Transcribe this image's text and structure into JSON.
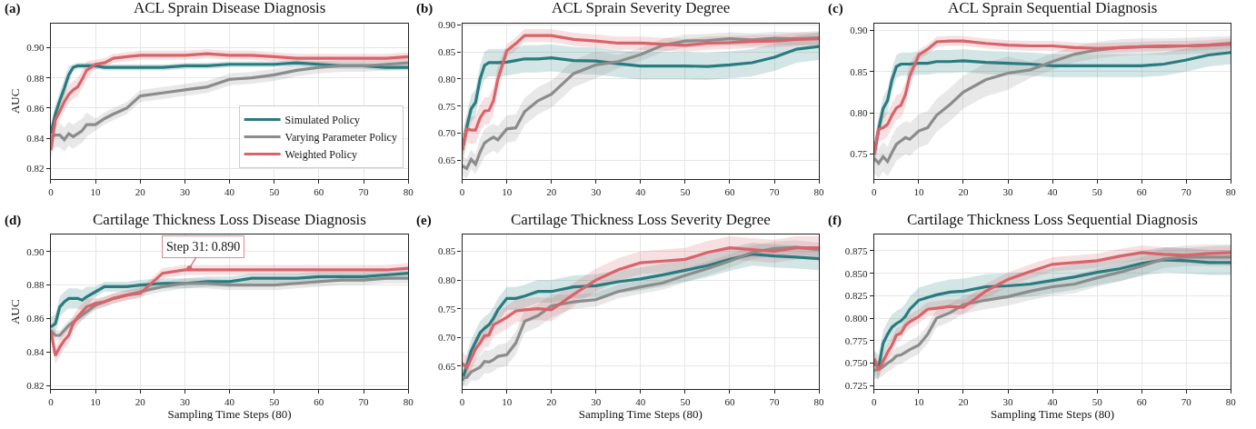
{
  "chart_data": [
    {
      "type": "line",
      "title": "ACL Sprain Disease Diagnosis",
      "ylabel": "AUC",
      "annotations": [
        "(a)"
      ],
      "x": [
        0,
        1,
        2,
        3,
        4,
        5,
        6,
        7,
        8,
        10,
        12,
        14,
        17,
        20,
        25,
        30,
        35,
        40,
        45,
        50,
        55,
        60,
        65,
        70,
        75,
        80
      ],
      "xlim": [
        0,
        80
      ],
      "xticks": [
        0,
        10,
        20,
        30,
        40,
        50,
        60,
        70,
        80
      ],
      "ylim": [
        0.813,
        0.916
      ],
      "yticks": [
        {
          "value": 0.82,
          "label": "0.82"
        },
        {
          "value": 0.84,
          "label": "0.84"
        },
        {
          "value": 0.86,
          "label": "0.86"
        },
        {
          "value": 0.88,
          "label": "0.88"
        },
        {
          "value": 0.9,
          "label": "0.90"
        }
      ],
      "grid": true,
      "legend": "bottom right",
      "series": [
        {
          "name": "Simulated Policy",
          "color": "#2a7b7f",
          "values": [
            0.843,
            0.856,
            0.865,
            0.873,
            0.882,
            0.887,
            0.888,
            0.888,
            0.888,
            0.888,
            0.887,
            0.887,
            0.887,
            0.887,
            0.887,
            0.888,
            0.888,
            0.889,
            0.889,
            0.889,
            0.89,
            0.889,
            0.888,
            0.888,
            0.887,
            0.887
          ],
          "lower": [
            0.837,
            0.85,
            0.859,
            0.867,
            0.876,
            0.885,
            0.886,
            0.886,
            0.886,
            0.886,
            0.885,
            0.885,
            0.885,
            0.885,
            0.885,
            0.886,
            0.886,
            0.887,
            0.887,
            0.887,
            0.888,
            0.887,
            0.886,
            0.886,
            0.885,
            0.885
          ],
          "upper": [
            0.849,
            0.862,
            0.871,
            0.879,
            0.888,
            0.889,
            0.89,
            0.89,
            0.89,
            0.89,
            0.889,
            0.889,
            0.889,
            0.889,
            0.889,
            0.89,
            0.89,
            0.891,
            0.891,
            0.891,
            0.892,
            0.891,
            0.89,
            0.89,
            0.889,
            0.889
          ]
        },
        {
          "name": "Varying Parameter Policy",
          "color": "#8c8c8c",
          "values": [
            0.841,
            0.842,
            0.842,
            0.839,
            0.843,
            0.841,
            0.843,
            0.845,
            0.849,
            0.849,
            0.853,
            0.856,
            0.86,
            0.868,
            0.87,
            0.872,
            0.874,
            0.879,
            0.88,
            0.882,
            0.885,
            0.887,
            0.888,
            0.888,
            0.889,
            0.89
          ],
          "lower": [
            0.833,
            0.834,
            0.834,
            0.831,
            0.835,
            0.833,
            0.835,
            0.837,
            0.841,
            0.845,
            0.849,
            0.852,
            0.856,
            0.864,
            0.866,
            0.868,
            0.87,
            0.875,
            0.876,
            0.878,
            0.881,
            0.883,
            0.884,
            0.884,
            0.885,
            0.886
          ],
          "upper": [
            0.849,
            0.85,
            0.85,
            0.847,
            0.851,
            0.849,
            0.851,
            0.853,
            0.857,
            0.853,
            0.857,
            0.86,
            0.864,
            0.872,
            0.874,
            0.876,
            0.878,
            0.883,
            0.884,
            0.886,
            0.889,
            0.891,
            0.892,
            0.892,
            0.893,
            0.894
          ]
        },
        {
          "name": "Weighted Policy",
          "color": "#d9636a",
          "values": [
            0.832,
            0.852,
            0.858,
            0.864,
            0.869,
            0.872,
            0.874,
            0.879,
            0.885,
            0.889,
            0.89,
            0.893,
            0.894,
            0.895,
            0.895,
            0.895,
            0.896,
            0.895,
            0.895,
            0.894,
            0.893,
            0.893,
            0.893,
            0.893,
            0.893,
            0.894
          ],
          "lower": [
            0.826,
            0.846,
            0.852,
            0.858,
            0.863,
            0.866,
            0.868,
            0.873,
            0.879,
            0.886,
            0.887,
            0.89,
            0.891,
            0.892,
            0.892,
            0.892,
            0.893,
            0.892,
            0.892,
            0.891,
            0.89,
            0.89,
            0.89,
            0.89,
            0.89,
            0.891
          ],
          "upper": [
            0.838,
            0.858,
            0.864,
            0.87,
            0.875,
            0.878,
            0.88,
            0.885,
            0.891,
            0.892,
            0.893,
            0.896,
            0.897,
            0.898,
            0.898,
            0.898,
            0.899,
            0.898,
            0.898,
            0.897,
            0.896,
            0.896,
            0.896,
            0.896,
            0.896,
            0.897
          ]
        }
      ]
    },
    {
      "type": "line",
      "title": "ACL Sprain Severity Degree",
      "annotations": [
        "(b)"
      ],
      "x": [
        0,
        1,
        2,
        3,
        4,
        5,
        6,
        7,
        8,
        10,
        12,
        14,
        17,
        20,
        25,
        30,
        35,
        40,
        45,
        50,
        55,
        60,
        65,
        70,
        75,
        80
      ],
      "xlim": [
        0,
        80
      ],
      "xticks": [
        0,
        10,
        20,
        30,
        40,
        50,
        60,
        70,
        80
      ],
      "ylim": [
        0.616,
        0.902
      ],
      "yticks": [
        {
          "value": 0.65,
          "label": "0.65"
        },
        {
          "value": 0.7,
          "label": "0.70"
        },
        {
          "value": 0.75,
          "label": "0.75"
        },
        {
          "value": 0.8,
          "label": "0.80"
        },
        {
          "value": 0.85,
          "label": "0.85"
        },
        {
          "value": 0.9,
          "label": "0.90"
        }
      ],
      "grid": true,
      "series": [
        {
          "color": "#2a7b7f",
          "values": [
            0.67,
            0.71,
            0.745,
            0.757,
            0.8,
            0.825,
            0.83,
            0.83,
            0.83,
            0.831,
            0.834,
            0.837,
            0.837,
            0.839,
            0.834,
            0.833,
            0.828,
            0.824,
            0.824,
            0.824,
            0.823,
            0.826,
            0.83,
            0.84,
            0.855,
            0.86
          ],
          "lower": [
            0.645,
            0.685,
            0.72,
            0.732,
            0.775,
            0.8,
            0.805,
            0.805,
            0.805,
            0.806,
            0.809,
            0.812,
            0.812,
            0.814,
            0.809,
            0.808,
            0.803,
            0.799,
            0.799,
            0.799,
            0.798,
            0.801,
            0.805,
            0.815,
            0.83,
            0.835
          ],
          "upper": [
            0.695,
            0.735,
            0.77,
            0.782,
            0.825,
            0.85,
            0.855,
            0.855,
            0.855,
            0.856,
            0.859,
            0.862,
            0.862,
            0.864,
            0.859,
            0.858,
            0.853,
            0.849,
            0.849,
            0.849,
            0.848,
            0.851,
            0.855,
            0.865,
            0.88,
            0.885
          ]
        },
        {
          "color": "#8c8c8c",
          "values": [
            0.64,
            0.635,
            0.652,
            0.643,
            0.665,
            0.682,
            0.688,
            0.693,
            0.688,
            0.708,
            0.71,
            0.74,
            0.76,
            0.772,
            0.81,
            0.826,
            0.832,
            0.845,
            0.862,
            0.87,
            0.871,
            0.874,
            0.872,
            0.875,
            0.874,
            0.876
          ],
          "lower": [
            0.622,
            0.617,
            0.634,
            0.625,
            0.64,
            0.657,
            0.663,
            0.668,
            0.663,
            0.683,
            0.685,
            0.715,
            0.735,
            0.747,
            0.785,
            0.801,
            0.82,
            0.833,
            0.85,
            0.858,
            0.859,
            0.862,
            0.86,
            0.863,
            0.862,
            0.864
          ],
          "upper": [
            0.658,
            0.653,
            0.67,
            0.661,
            0.69,
            0.707,
            0.713,
            0.718,
            0.713,
            0.733,
            0.735,
            0.765,
            0.785,
            0.797,
            0.835,
            0.851,
            0.844,
            0.857,
            0.874,
            0.882,
            0.883,
            0.886,
            0.884,
            0.887,
            0.886,
            0.888
          ]
        },
        {
          "color": "#d9636a",
          "values": [
            0.668,
            0.708,
            0.706,
            0.706,
            0.728,
            0.741,
            0.742,
            0.76,
            0.8,
            0.852,
            0.865,
            0.88,
            0.88,
            0.88,
            0.873,
            0.87,
            0.866,
            0.866,
            0.864,
            0.862,
            0.866,
            0.867,
            0.869,
            0.87,
            0.873,
            0.874
          ],
          "lower": [
            0.643,
            0.683,
            0.681,
            0.681,
            0.703,
            0.716,
            0.717,
            0.735,
            0.775,
            0.84,
            0.853,
            0.868,
            0.868,
            0.868,
            0.861,
            0.858,
            0.854,
            0.854,
            0.852,
            0.85,
            0.854,
            0.855,
            0.857,
            0.858,
            0.861,
            0.862
          ],
          "upper": [
            0.693,
            0.733,
            0.731,
            0.731,
            0.753,
            0.766,
            0.767,
            0.785,
            0.825,
            0.864,
            0.877,
            0.892,
            0.892,
            0.892,
            0.885,
            0.882,
            0.878,
            0.878,
            0.876,
            0.874,
            0.878,
            0.879,
            0.881,
            0.882,
            0.885,
            0.886
          ]
        }
      ]
    },
    {
      "type": "line",
      "title": "ACL Sprain Sequential Diagnosis",
      "annotations": [
        "(c)"
      ],
      "x": [
        0,
        1,
        2,
        3,
        4,
        5,
        6,
        7,
        8,
        10,
        12,
        14,
        17,
        20,
        25,
        30,
        35,
        40,
        45,
        50,
        55,
        60,
        65,
        70,
        75,
        80
      ],
      "xlim": [
        0,
        80
      ],
      "xticks": [
        0,
        10,
        20,
        30,
        40,
        50,
        60,
        70,
        80
      ],
      "ylim": [
        0.72,
        0.908
      ],
      "yticks": [
        {
          "value": 0.75,
          "label": "0.75"
        },
        {
          "value": 0.8,
          "label": "0.80"
        },
        {
          "value": 0.85,
          "label": "0.85"
        },
        {
          "value": 0.9,
          "label": "0.90"
        }
      ],
      "grid": true,
      "series": [
        {
          "color": "#2a7b7f",
          "values": [
            0.75,
            0.78,
            0.805,
            0.815,
            0.84,
            0.856,
            0.859,
            0.859,
            0.859,
            0.86,
            0.86,
            0.862,
            0.862,
            0.863,
            0.861,
            0.86,
            0.859,
            0.857,
            0.857,
            0.857,
            0.857,
            0.857,
            0.859,
            0.864,
            0.87,
            0.873
          ],
          "lower": [
            0.736,
            0.766,
            0.791,
            0.801,
            0.826,
            0.842,
            0.845,
            0.845,
            0.845,
            0.846,
            0.846,
            0.848,
            0.848,
            0.849,
            0.847,
            0.846,
            0.845,
            0.843,
            0.843,
            0.843,
            0.843,
            0.843,
            0.845,
            0.85,
            0.856,
            0.859
          ],
          "upper": [
            0.764,
            0.794,
            0.819,
            0.829,
            0.854,
            0.87,
            0.873,
            0.873,
            0.873,
            0.874,
            0.874,
            0.876,
            0.876,
            0.877,
            0.875,
            0.874,
            0.873,
            0.871,
            0.871,
            0.871,
            0.871,
            0.871,
            0.873,
            0.878,
            0.884,
            0.887
          ]
        },
        {
          "color": "#8c8c8c",
          "values": [
            0.745,
            0.739,
            0.747,
            0.741,
            0.752,
            0.762,
            0.766,
            0.77,
            0.768,
            0.778,
            0.782,
            0.797,
            0.81,
            0.825,
            0.84,
            0.848,
            0.852,
            0.862,
            0.871,
            0.876,
            0.879,
            0.88,
            0.88,
            0.881,
            0.882,
            0.883
          ],
          "lower": [
            0.727,
            0.721,
            0.729,
            0.723,
            0.732,
            0.742,
            0.746,
            0.75,
            0.748,
            0.758,
            0.762,
            0.777,
            0.79,
            0.805,
            0.82,
            0.828,
            0.842,
            0.852,
            0.861,
            0.866,
            0.869,
            0.87,
            0.87,
            0.871,
            0.872,
            0.873
          ],
          "upper": [
            0.763,
            0.757,
            0.765,
            0.759,
            0.772,
            0.782,
            0.786,
            0.79,
            0.788,
            0.798,
            0.802,
            0.817,
            0.83,
            0.845,
            0.86,
            0.868,
            0.862,
            0.872,
            0.881,
            0.886,
            0.889,
            0.89,
            0.89,
            0.891,
            0.892,
            0.893
          ]
        },
        {
          "color": "#d9636a",
          "values": [
            0.75,
            0.78,
            0.782,
            0.786,
            0.797,
            0.806,
            0.809,
            0.822,
            0.845,
            0.87,
            0.877,
            0.886,
            0.887,
            0.887,
            0.884,
            0.882,
            0.881,
            0.881,
            0.879,
            0.878,
            0.879,
            0.88,
            0.881,
            0.881,
            0.882,
            0.884
          ],
          "lower": [
            0.735,
            0.765,
            0.767,
            0.771,
            0.782,
            0.791,
            0.794,
            0.807,
            0.83,
            0.864,
            0.871,
            0.88,
            0.881,
            0.881,
            0.878,
            0.876,
            0.875,
            0.875,
            0.873,
            0.872,
            0.873,
            0.874,
            0.875,
            0.875,
            0.876,
            0.878
          ],
          "upper": [
            0.765,
            0.795,
            0.797,
            0.801,
            0.812,
            0.821,
            0.824,
            0.837,
            0.86,
            0.876,
            0.883,
            0.892,
            0.893,
            0.893,
            0.89,
            0.888,
            0.887,
            0.887,
            0.885,
            0.884,
            0.885,
            0.886,
            0.887,
            0.887,
            0.888,
            0.89
          ]
        }
      ]
    },
    {
      "type": "line",
      "title": "Cartilage Thickness Loss Disease Diagnosis",
      "xlabel": "Sampling Time Steps (80)",
      "ylabel": "AUC",
      "annotations": [
        "(d)",
        {
          "text": "Step 31: 0.890",
          "x": 31,
          "y": 0.89
        }
      ],
      "x": [
        0,
        1,
        2,
        3,
        4,
        5,
        6,
        7,
        8,
        10,
        12,
        14,
        17,
        20,
        25,
        30,
        35,
        40,
        45,
        50,
        55,
        60,
        65,
        70,
        75,
        80
      ],
      "xlim": [
        0,
        80
      ],
      "xticks": [
        0,
        10,
        20,
        30,
        40,
        50,
        60,
        70,
        80
      ],
      "ylim": [
        0.818,
        0.91
      ],
      "yticks": [
        {
          "value": 0.82,
          "label": "0.82"
        },
        {
          "value": 0.84,
          "label": "0.84"
        },
        {
          "value": 0.86,
          "label": "0.86"
        },
        {
          "value": 0.88,
          "label": "0.88"
        },
        {
          "value": 0.9,
          "label": "0.90"
        }
      ],
      "grid": true,
      "series": [
        {
          "color": "#2a7b7f",
          "values": [
            0.855,
            0.857,
            0.867,
            0.87,
            0.872,
            0.872,
            0.872,
            0.871,
            0.873,
            0.876,
            0.879,
            0.879,
            0.879,
            0.88,
            0.881,
            0.881,
            0.882,
            0.882,
            0.884,
            0.884,
            0.884,
            0.885,
            0.885,
            0.885,
            0.886,
            0.887
          ],
          "lower": [
            0.849,
            0.851,
            0.861,
            0.864,
            0.866,
            0.866,
            0.866,
            0.865,
            0.867,
            0.873,
            0.876,
            0.876,
            0.876,
            0.877,
            0.878,
            0.878,
            0.879,
            0.879,
            0.881,
            0.881,
            0.881,
            0.882,
            0.882,
            0.882,
            0.883,
            0.884
          ],
          "upper": [
            0.861,
            0.863,
            0.873,
            0.876,
            0.878,
            0.878,
            0.878,
            0.877,
            0.879,
            0.879,
            0.882,
            0.882,
            0.882,
            0.883,
            0.884,
            0.884,
            0.885,
            0.885,
            0.887,
            0.887,
            0.887,
            0.888,
            0.888,
            0.888,
            0.889,
            0.89
          ]
        },
        {
          "color": "#8c8c8c",
          "values": [
            0.853,
            0.85,
            0.85,
            0.853,
            0.856,
            0.858,
            0.86,
            0.862,
            0.864,
            0.868,
            0.87,
            0.872,
            0.874,
            0.876,
            0.879,
            0.881,
            0.881,
            0.88,
            0.88,
            0.88,
            0.881,
            0.882,
            0.883,
            0.883,
            0.884,
            0.884
          ],
          "lower": [
            0.85,
            0.847,
            0.847,
            0.85,
            0.853,
            0.855,
            0.857,
            0.859,
            0.861,
            0.865,
            0.867,
            0.869,
            0.871,
            0.873,
            0.876,
            0.878,
            0.878,
            0.877,
            0.877,
            0.877,
            0.878,
            0.879,
            0.88,
            0.88,
            0.881,
            0.881
          ],
          "upper": [
            0.856,
            0.853,
            0.853,
            0.856,
            0.859,
            0.861,
            0.863,
            0.865,
            0.867,
            0.871,
            0.873,
            0.875,
            0.877,
            0.879,
            0.882,
            0.884,
            0.884,
            0.883,
            0.883,
            0.883,
            0.884,
            0.885,
            0.886,
            0.886,
            0.887,
            0.887
          ]
        },
        {
          "color": "#d9636a",
          "values": [
            0.853,
            0.838,
            0.843,
            0.847,
            0.85,
            0.857,
            0.861,
            0.864,
            0.867,
            0.869,
            0.87,
            0.872,
            0.874,
            0.875,
            0.887,
            0.889,
            0.889,
            0.889,
            0.889,
            0.889,
            0.889,
            0.889,
            0.889,
            0.889,
            0.889,
            0.89
          ],
          "lower": [
            0.848,
            0.833,
            0.838,
            0.842,
            0.845,
            0.852,
            0.856,
            0.859,
            0.862,
            0.866,
            0.867,
            0.869,
            0.871,
            0.872,
            0.884,
            0.886,
            0.886,
            0.886,
            0.886,
            0.886,
            0.886,
            0.886,
            0.886,
            0.886,
            0.886,
            0.887
          ],
          "upper": [
            0.858,
            0.843,
            0.848,
            0.852,
            0.855,
            0.862,
            0.866,
            0.869,
            0.872,
            0.872,
            0.873,
            0.875,
            0.877,
            0.878,
            0.89,
            0.892,
            0.892,
            0.892,
            0.892,
            0.892,
            0.892,
            0.892,
            0.892,
            0.892,
            0.892,
            0.893
          ]
        }
      ]
    },
    {
      "type": "line",
      "title": "Cartilage Thickness Loss Severity Degree",
      "xlabel": "Sampling Time Steps (80)",
      "annotations": [
        "(e)"
      ],
      "x": [
        0,
        1,
        2,
        3,
        4,
        5,
        6,
        7,
        8,
        10,
        12,
        14,
        17,
        20,
        25,
        30,
        35,
        40,
        45,
        50,
        55,
        60,
        65,
        70,
        75,
        80
      ],
      "xlim": [
        0,
        80
      ],
      "xticks": [
        0,
        10,
        20,
        30,
        40,
        50,
        60,
        70,
        80
      ],
      "ylim": [
        0.61,
        0.879
      ],
      "yticks": [
        {
          "value": 0.65,
          "label": "0.65"
        },
        {
          "value": 0.7,
          "label": "0.70"
        },
        {
          "value": 0.75,
          "label": "0.75"
        },
        {
          "value": 0.8,
          "label": "0.80"
        },
        {
          "value": 0.85,
          "label": "0.85"
        }
      ],
      "grid": true,
      "series": [
        {
          "color": "#2a7b7f",
          "values": [
            0.625,
            0.65,
            0.676,
            0.692,
            0.708,
            0.716,
            0.722,
            0.733,
            0.748,
            0.768,
            0.768,
            0.772,
            0.78,
            0.78,
            0.788,
            0.79,
            0.797,
            0.802,
            0.809,
            0.817,
            0.825,
            0.836,
            0.845,
            0.842,
            0.84,
            0.837
          ],
          "lower": [
            0.613,
            0.63,
            0.656,
            0.672,
            0.688,
            0.696,
            0.702,
            0.713,
            0.728,
            0.748,
            0.748,
            0.752,
            0.76,
            0.76,
            0.768,
            0.77,
            0.777,
            0.782,
            0.789,
            0.797,
            0.805,
            0.816,
            0.825,
            0.822,
            0.82,
            0.817
          ],
          "upper": [
            0.637,
            0.67,
            0.696,
            0.712,
            0.728,
            0.736,
            0.742,
            0.753,
            0.768,
            0.788,
            0.788,
            0.792,
            0.8,
            0.8,
            0.808,
            0.81,
            0.817,
            0.822,
            0.829,
            0.837,
            0.845,
            0.856,
            0.865,
            0.862,
            0.86,
            0.857
          ]
        },
        {
          "color": "#8c8c8c",
          "values": [
            0.63,
            0.63,
            0.64,
            0.644,
            0.648,
            0.658,
            0.657,
            0.661,
            0.667,
            0.67,
            0.69,
            0.728,
            0.738,
            0.755,
            0.762,
            0.766,
            0.78,
            0.788,
            0.795,
            0.808,
            0.82,
            0.833,
            0.848,
            0.855,
            0.857,
            0.853
          ],
          "lower": [
            0.615,
            0.615,
            0.625,
            0.624,
            0.628,
            0.638,
            0.637,
            0.641,
            0.647,
            0.65,
            0.67,
            0.708,
            0.718,
            0.735,
            0.75,
            0.754,
            0.768,
            0.776,
            0.783,
            0.796,
            0.808,
            0.821,
            0.836,
            0.843,
            0.845,
            0.841
          ],
          "upper": [
            0.645,
            0.645,
            0.655,
            0.664,
            0.668,
            0.678,
            0.677,
            0.681,
            0.687,
            0.69,
            0.71,
            0.748,
            0.758,
            0.775,
            0.774,
            0.778,
            0.792,
            0.8,
            0.807,
            0.82,
            0.832,
            0.845,
            0.86,
            0.867,
            0.869,
            0.865
          ]
        },
        {
          "color": "#d9636a",
          "values": [
            0.655,
            0.647,
            0.663,
            0.68,
            0.69,
            0.703,
            0.704,
            0.722,
            0.726,
            0.735,
            0.746,
            0.748,
            0.75,
            0.748,
            0.775,
            0.8,
            0.818,
            0.83,
            0.833,
            0.836,
            0.848,
            0.856,
            0.853,
            0.85,
            0.856,
            0.856
          ],
          "lower": [
            0.635,
            0.627,
            0.643,
            0.66,
            0.67,
            0.683,
            0.684,
            0.702,
            0.706,
            0.715,
            0.726,
            0.728,
            0.73,
            0.728,
            0.755,
            0.78,
            0.798,
            0.81,
            0.813,
            0.816,
            0.828,
            0.836,
            0.833,
            0.83,
            0.836,
            0.836
          ],
          "upper": [
            0.675,
            0.667,
            0.683,
            0.7,
            0.71,
            0.723,
            0.724,
            0.742,
            0.746,
            0.755,
            0.766,
            0.768,
            0.77,
            0.768,
            0.795,
            0.82,
            0.838,
            0.85,
            0.853,
            0.856,
            0.868,
            0.876,
            0.873,
            0.87,
            0.876,
            0.876
          ]
        }
      ]
    },
    {
      "type": "line",
      "title": "Cartilage Thickness Loss Sequential Diagnosis",
      "xlabel": "Sampling Time Steps (80)",
      "annotations": [
        "(f)"
      ],
      "x": [
        0,
        1,
        2,
        3,
        4,
        5,
        6,
        7,
        8,
        10,
        12,
        14,
        17,
        20,
        25,
        30,
        35,
        40,
        45,
        50,
        55,
        60,
        65,
        70,
        75,
        80
      ],
      "xlim": [
        0,
        80
      ],
      "xticks": [
        0,
        10,
        20,
        30,
        40,
        50,
        60,
        70,
        80
      ],
      "ylim": [
        0.721,
        0.893
      ],
      "yticks": [
        {
          "value": 0.725,
          "label": "0.725"
        },
        {
          "value": 0.75,
          "label": "0.750"
        },
        {
          "value": 0.775,
          "label": "0.775"
        },
        {
          "value": 0.8,
          "label": "0.800"
        },
        {
          "value": 0.825,
          "label": "0.825"
        },
        {
          "value": 0.85,
          "label": "0.850"
        },
        {
          "value": 0.875,
          "label": "0.875"
        }
      ],
      "grid": true,
      "series": [
        {
          "color": "#2a7b7f",
          "values": [
            0.75,
            0.745,
            0.772,
            0.782,
            0.79,
            0.794,
            0.797,
            0.802,
            0.81,
            0.82,
            0.823,
            0.826,
            0.829,
            0.83,
            0.835,
            0.836,
            0.838,
            0.842,
            0.846,
            0.851,
            0.855,
            0.861,
            0.865,
            0.864,
            0.862,
            0.862
          ],
          "lower": [
            0.736,
            0.731,
            0.758,
            0.768,
            0.776,
            0.78,
            0.783,
            0.788,
            0.796,
            0.806,
            0.809,
            0.812,
            0.815,
            0.816,
            0.821,
            0.822,
            0.824,
            0.828,
            0.832,
            0.837,
            0.841,
            0.847,
            0.851,
            0.85,
            0.848,
            0.848
          ],
          "upper": [
            0.764,
            0.759,
            0.786,
            0.796,
            0.804,
            0.808,
            0.811,
            0.816,
            0.824,
            0.834,
            0.837,
            0.84,
            0.843,
            0.844,
            0.849,
            0.85,
            0.852,
            0.856,
            0.86,
            0.865,
            0.869,
            0.875,
            0.879,
            0.878,
            0.876,
            0.876
          ]
        },
        {
          "color": "#8c8c8c",
          "values": [
            0.742,
            0.743,
            0.746,
            0.75,
            0.753,
            0.758,
            0.759,
            0.762,
            0.765,
            0.77,
            0.782,
            0.8,
            0.806,
            0.815,
            0.82,
            0.824,
            0.83,
            0.835,
            0.838,
            0.845,
            0.851,
            0.858,
            0.866,
            0.868,
            0.868,
            0.868
          ],
          "lower": [
            0.732,
            0.733,
            0.736,
            0.74,
            0.743,
            0.748,
            0.749,
            0.752,
            0.755,
            0.76,
            0.772,
            0.79,
            0.796,
            0.805,
            0.81,
            0.814,
            0.82,
            0.825,
            0.828,
            0.835,
            0.841,
            0.848,
            0.856,
            0.858,
            0.858,
            0.858
          ],
          "upper": [
            0.752,
            0.753,
            0.756,
            0.76,
            0.763,
            0.768,
            0.769,
            0.772,
            0.775,
            0.78,
            0.792,
            0.81,
            0.816,
            0.825,
            0.83,
            0.834,
            0.84,
            0.845,
            0.848,
            0.855,
            0.861,
            0.868,
            0.878,
            0.881,
            0.882,
            0.882
          ]
        },
        {
          "color": "#d9636a",
          "values": [
            0.755,
            0.742,
            0.752,
            0.762,
            0.77,
            0.781,
            0.783,
            0.792,
            0.796,
            0.802,
            0.81,
            0.811,
            0.813,
            0.812,
            0.83,
            0.843,
            0.852,
            0.86,
            0.862,
            0.864,
            0.869,
            0.873,
            0.871,
            0.87,
            0.872,
            0.873
          ],
          "lower": [
            0.747,
            0.734,
            0.744,
            0.754,
            0.762,
            0.773,
            0.775,
            0.784,
            0.788,
            0.794,
            0.802,
            0.803,
            0.805,
            0.804,
            0.822,
            0.835,
            0.844,
            0.852,
            0.854,
            0.856,
            0.861,
            0.865,
            0.863,
            0.862,
            0.864,
            0.865
          ],
          "upper": [
            0.763,
            0.75,
            0.76,
            0.77,
            0.778,
            0.789,
            0.791,
            0.8,
            0.804,
            0.81,
            0.818,
            0.819,
            0.821,
            0.82,
            0.838,
            0.851,
            0.86,
            0.868,
            0.87,
            0.872,
            0.877,
            0.881,
            0.879,
            0.878,
            0.88,
            0.881
          ]
        }
      ]
    }
  ]
}
